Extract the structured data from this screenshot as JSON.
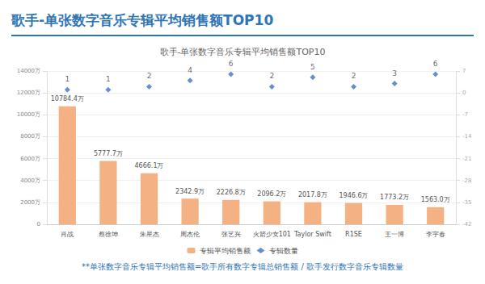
{
  "header": {
    "title": "歌手-单张数字音乐专辑平均销售额TOP10"
  },
  "chart_data": {
    "type": "bar",
    "title": "歌手-单张数字音乐专辑平均销售额TOP10",
    "categories": [
      "肖战",
      "蔡徐坤",
      "朱星杰",
      "周杰伦",
      "张艺兴",
      "火箭少女101",
      "Taylor Swift",
      "R1SE",
      "王一博",
      "李宇春"
    ],
    "series": [
      {
        "name": "专辑平均销售额",
        "type": "bar",
        "color": "#f4b183",
        "values": [
          10784.4,
          5777.7,
          4666.1,
          2342.9,
          2226.8,
          2096.2,
          2017.8,
          1946.6,
          1773.2,
          1563.0
        ],
        "value_labels": [
          "10784.4万",
          "5777.7万",
          "4666.1万",
          "2342.9万",
          "2226.8万",
          "2096.2万",
          "2017.8万",
          "1946.6万",
          "1773.2万",
          "1563.0万"
        ]
      },
      {
        "name": "专辑数量",
        "type": "scatter",
        "marker": "diamond",
        "color": "#4472c4",
        "axis": "y2",
        "values": [
          1,
          1,
          2,
          4,
          6,
          2,
          5,
          2,
          3,
          6
        ]
      }
    ],
    "ylim": [
      0,
      14000
    ],
    "yticks": [
      0,
      {
        "value": 2000,
        "label": "2000万"
      },
      {
        "value": 4000,
        "label": "4000万"
      },
      {
        "value": 6000,
        "label": "6000万"
      },
      {
        "value": 8000,
        "label": "8000万"
      },
      {
        "value": 10000,
        "label": "10000万"
      },
      {
        "value": 12000,
        "label": "12000万"
      },
      {
        "value": 14000,
        "label": "14000万"
      }
    ],
    "y2lim": [
      -42,
      7
    ],
    "y2ticks": [
      -42,
      -35,
      -28,
      -21,
      -14,
      -7,
      0,
      7
    ],
    "grid": true,
    "legend": "bottom",
    "data_labels": true
  },
  "footnote": "**单张数字音乐专辑平均销售额=歌手所有数字专辑总销售额 / 歌手发行数字音乐专辑数量"
}
